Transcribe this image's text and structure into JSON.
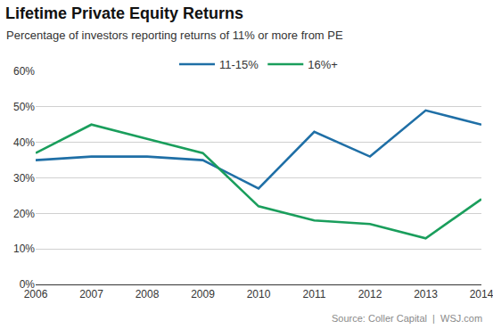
{
  "chart_data": {
    "type": "line",
    "title": "Lifetime Private Equity Returns",
    "subtitle": "Percentage of investors reporting returns of 11% or more from PE",
    "annotations": [
      "Source: Coller Capital  |  WSJ.com"
    ],
    "categories": [
      "2006",
      "2007",
      "2008",
      "2009",
      "2010",
      "2011",
      "2012",
      "2013",
      "2014"
    ],
    "series": [
      {
        "name": "11-15%",
        "color": "#1f6fa6",
        "values": [
          35,
          36,
          36,
          35,
          27,
          43,
          36,
          49,
          45
        ]
      },
      {
        "name": "16%+",
        "color": "#1a9e5c",
        "values": [
          37,
          45,
          41,
          37,
          22,
          18,
          17,
          13,
          24
        ]
      }
    ],
    "ylim": [
      0,
      60
    ],
    "yticks": [
      {
        "value": 0,
        "label": "0%"
      },
      {
        "value": 10,
        "label": "10%"
      },
      {
        "value": 20,
        "label": "20%"
      },
      {
        "value": 30,
        "label": "30%"
      },
      {
        "value": 40,
        "label": "40%"
      },
      {
        "value": 50,
        "label": "50%"
      },
      {
        "value": 60,
        "label": "60%"
      }
    ],
    "grid": true,
    "legend": "top"
  }
}
